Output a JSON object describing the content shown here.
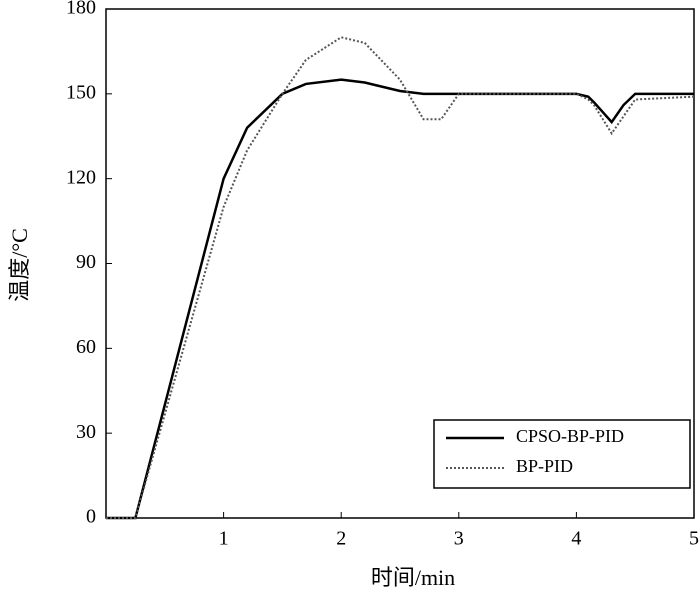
{
  "chart_data": {
    "type": "line",
    "x_label": "时间/min",
    "y_label": "温度/°C",
    "x": [
      0,
      0.25,
      1,
      1.2,
      1.5,
      1.7,
      2,
      2.2,
      2.5,
      2.7,
      2.85,
      3,
      4,
      4.1,
      4.15,
      4.3,
      4.4,
      4.5,
      5
    ],
    "series": [
      {
        "name": "CPSO-BP-PID",
        "color": "#000000",
        "style": "solid",
        "values": [
          0,
          0,
          120,
          138,
          150,
          153.5,
          155,
          154,
          151,
          150,
          150,
          150,
          150,
          149,
          147,
          140,
          146,
          150,
          150
        ]
      },
      {
        "name": "BP-PID",
        "color": "#555555",
        "style": "dotted",
        "values": [
          0,
          0,
          110,
          130,
          150,
          162,
          170,
          168,
          155,
          141,
          141,
          150,
          150,
          148,
          146,
          136,
          142,
          148,
          149
        ]
      }
    ],
    "xlim": [
      0,
      5
    ],
    "xticks": [
      1,
      2,
      3,
      4,
      5
    ],
    "ylim": [
      0,
      180
    ],
    "yticks": [
      0,
      30,
      60,
      90,
      120,
      150,
      180
    ],
    "legend": "lower right"
  }
}
